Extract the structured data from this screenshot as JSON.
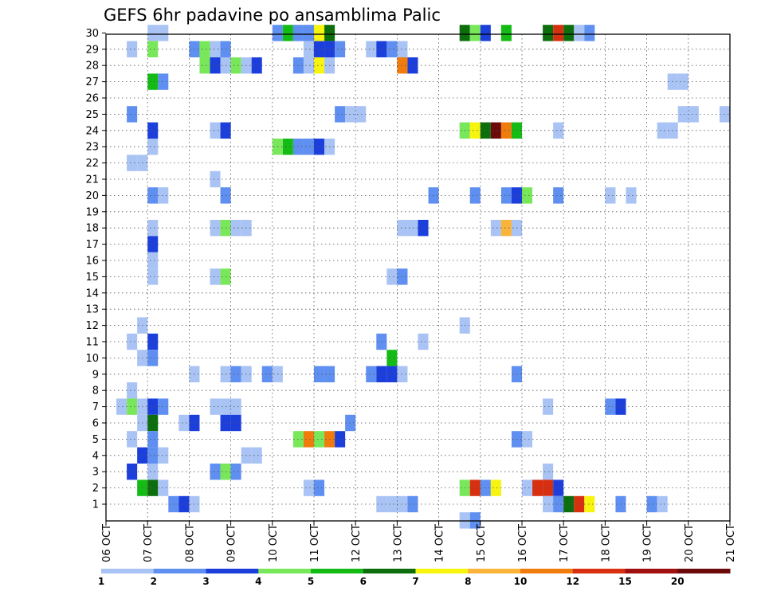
{
  "chart_data": {
    "type": "heatmap",
    "title": "GEFS 6hr padavine po ansamblima Palic",
    "xlabel": "",
    "ylabel": "",
    "x_tick_labels": [
      "06 OCT",
      "07 OCT",
      "08 OCT",
      "09 OCT",
      "10 OCT",
      "11 OCT",
      "12 OCT",
      "13 OCT",
      "14 OCT",
      "15 OCT",
      "16 OCT",
      "17 OCT",
      "18 OCT",
      "19 OCT",
      "20 OCT",
      "21 OCT"
    ],
    "y_tick_labels": [
      "1",
      "2",
      "3",
      "4",
      "5",
      "6",
      "7",
      "8",
      "9",
      "10",
      "11",
      "12",
      "13",
      "14",
      "15",
      "16",
      "17",
      "18",
      "19",
      "20",
      "21",
      "22",
      "23",
      "24",
      "25",
      "26",
      "27",
      "28",
      "29",
      "30"
    ],
    "xlim": [
      "06 OCT 00Z",
      "21 OCT 00Z"
    ],
    "ylim": [
      1,
      30
    ],
    "time_step_hours": 6,
    "grid": true,
    "legend": {
      "placement": "bottom",
      "levels": [
        1,
        2,
        3,
        4,
        5,
        6,
        7,
        8,
        10,
        12,
        15,
        20
      ],
      "level_labels": [
        "1",
        "2",
        "3",
        "4",
        "5",
        "6",
        "7",
        "8",
        "10",
        "12",
        "15",
        "20"
      ],
      "colors": [
        "#a9c3f5",
        "#5f8ff0",
        "#1c3fdc",
        "#78e85a",
        "#15bb15",
        "#0d6e0d",
        "#f7f410",
        "#fbb43a",
        "#f07c0e",
        "#d72f10",
        "#a01010",
        "#6c0a0a"
      ]
    },
    "cells": [
      {
        "member": 30,
        "time": "07 OCT 00Z",
        "cat": 0
      },
      {
        "member": 30,
        "time": "07 OCT 06Z",
        "cat": 0
      },
      {
        "member": 30,
        "time": "10 OCT 00Z",
        "cat": 1
      },
      {
        "member": 30,
        "time": "10 OCT 06Z",
        "cat": 4
      },
      {
        "member": 30,
        "time": "10 OCT 12Z",
        "cat": 1
      },
      {
        "member": 30,
        "time": "10 OCT 18Z",
        "cat": 1
      },
      {
        "member": 30,
        "time": "11 OCT 00Z",
        "cat": 6
      },
      {
        "member": 30,
        "time": "11 OCT 06Z",
        "cat": 5
      },
      {
        "member": 30,
        "time": "14 OCT 12Z",
        "cat": 5
      },
      {
        "member": 30,
        "time": "14 OCT 18Z",
        "cat": 3
      },
      {
        "member": 30,
        "time": "15 OCT 00Z",
        "cat": 2
      },
      {
        "member": 30,
        "time": "15 OCT 12Z",
        "cat": 4
      },
      {
        "member": 30,
        "time": "16 OCT 12Z",
        "cat": 5
      },
      {
        "member": 30,
        "time": "16 OCT 18Z",
        "cat": 9
      },
      {
        "member": 30,
        "time": "17 OCT 00Z",
        "cat": 5
      },
      {
        "member": 30,
        "time": "17 OCT 06Z",
        "cat": 0
      },
      {
        "member": 30,
        "time": "17 OCT 12Z",
        "cat": 1
      },
      {
        "member": 29,
        "time": "06 OCT 12Z",
        "cat": 0
      },
      {
        "member": 29,
        "time": "07 OCT 00Z",
        "cat": 3
      },
      {
        "member": 29,
        "time": "08 OCT 00Z",
        "cat": 1
      },
      {
        "member": 29,
        "time": "08 OCT 06Z",
        "cat": 3
      },
      {
        "member": 29,
        "time": "08 OCT 12Z",
        "cat": 0
      },
      {
        "member": 29,
        "time": "08 OCT 18Z",
        "cat": 1
      },
      {
        "member": 29,
        "time": "10 OCT 18Z",
        "cat": 0
      },
      {
        "member": 29,
        "time": "11 OCT 00Z",
        "cat": 2
      },
      {
        "member": 29,
        "time": "11 OCT 06Z",
        "cat": 2
      },
      {
        "member": 29,
        "time": "11 OCT 12Z",
        "cat": 1
      },
      {
        "member": 29,
        "time": "12 OCT 06Z",
        "cat": 0
      },
      {
        "member": 29,
        "time": "12 OCT 12Z",
        "cat": 2
      },
      {
        "member": 29,
        "time": "12 OCT 18Z",
        "cat": 1
      },
      {
        "member": 29,
        "time": "13 OCT 00Z",
        "cat": 0
      },
      {
        "member": 28,
        "time": "08 OCT 06Z",
        "cat": 3
      },
      {
        "member": 28,
        "time": "08 OCT 12Z",
        "cat": 2
      },
      {
        "member": 28,
        "time": "08 OCT 18Z",
        "cat": 0
      },
      {
        "member": 28,
        "time": "09 OCT 00Z",
        "cat": 3
      },
      {
        "member": 28,
        "time": "09 OCT 06Z",
        "cat": 0
      },
      {
        "member": 28,
        "time": "09 OCT 12Z",
        "cat": 2
      },
      {
        "member": 28,
        "time": "10 OCT 12Z",
        "cat": 1
      },
      {
        "member": 28,
        "time": "10 OCT 18Z",
        "cat": 0
      },
      {
        "member": 28,
        "time": "11 OCT 00Z",
        "cat": 6
      },
      {
        "member": 28,
        "time": "11 OCT 06Z",
        "cat": 0
      },
      {
        "member": 28,
        "time": "13 OCT 00Z",
        "cat": 8
      },
      {
        "member": 28,
        "time": "13 OCT 06Z",
        "cat": 2
      },
      {
        "member": 27,
        "time": "07 OCT 00Z",
        "cat": 4
      },
      {
        "member": 27,
        "time": "07 OCT 06Z",
        "cat": 1
      },
      {
        "member": 27,
        "time": "19 OCT 12Z",
        "cat": 0
      },
      {
        "member": 27,
        "time": "19 OCT 18Z",
        "cat": 0
      },
      {
        "member": 25,
        "time": "06 OCT 12Z",
        "cat": 1
      },
      {
        "member": 25,
        "time": "11 OCT 12Z",
        "cat": 1
      },
      {
        "member": 25,
        "time": "11 OCT 18Z",
        "cat": 0
      },
      {
        "member": 25,
        "time": "12 OCT 00Z",
        "cat": 0
      },
      {
        "member": 25,
        "time": "19 OCT 18Z",
        "cat": 0
      },
      {
        "member": 25,
        "time": "20 OCT 00Z",
        "cat": 0
      },
      {
        "member": 25,
        "time": "20 OCT 18Z",
        "cat": 0
      },
      {
        "member": 24,
        "time": "07 OCT 00Z",
        "cat": 2
      },
      {
        "member": 24,
        "time": "08 OCT 12Z",
        "cat": 0
      },
      {
        "member": 24,
        "time": "08 OCT 18Z",
        "cat": 2
      },
      {
        "member": 24,
        "time": "14 OCT 12Z",
        "cat": 3
      },
      {
        "member": 24,
        "time": "14 OCT 18Z",
        "cat": 6
      },
      {
        "member": 24,
        "time": "15 OCT 00Z",
        "cat": 5
      },
      {
        "member": 24,
        "time": "15 OCT 06Z",
        "cat": 11
      },
      {
        "member": 24,
        "time": "15 OCT 12Z",
        "cat": 8
      },
      {
        "member": 24,
        "time": "15 OCT 18Z",
        "cat": 4
      },
      {
        "member": 24,
        "time": "16 OCT 18Z",
        "cat": 0
      },
      {
        "member": 24,
        "time": "19 OCT 06Z",
        "cat": 0
      },
      {
        "member": 24,
        "time": "19 OCT 12Z",
        "cat": 0
      },
      {
        "member": 23,
        "time": "07 OCT 00Z",
        "cat": 0
      },
      {
        "member": 23,
        "time": "10 OCT 00Z",
        "cat": 3
      },
      {
        "member": 23,
        "time": "10 OCT 06Z",
        "cat": 4
      },
      {
        "member": 23,
        "time": "10 OCT 12Z",
        "cat": 1
      },
      {
        "member": 23,
        "time": "10 OCT 18Z",
        "cat": 1
      },
      {
        "member": 23,
        "time": "11 OCT 00Z",
        "cat": 2
      },
      {
        "member": 23,
        "time": "11 OCT 06Z",
        "cat": 0
      },
      {
        "member": 22,
        "time": "06 OCT 12Z",
        "cat": 0
      },
      {
        "member": 22,
        "time": "06 OCT 18Z",
        "cat": 0
      },
      {
        "member": 21,
        "time": "08 OCT 12Z",
        "cat": 0
      },
      {
        "member": 20,
        "time": "07 OCT 00Z",
        "cat": 1
      },
      {
        "member": 20,
        "time": "07 OCT 06Z",
        "cat": 0
      },
      {
        "member": 20,
        "time": "08 OCT 18Z",
        "cat": 1
      },
      {
        "member": 20,
        "time": "13 OCT 18Z",
        "cat": 1
      },
      {
        "member": 20,
        "time": "14 OCT 18Z",
        "cat": 1
      },
      {
        "member": 20,
        "time": "15 OCT 12Z",
        "cat": 1
      },
      {
        "member": 20,
        "time": "15 OCT 18Z",
        "cat": 2
      },
      {
        "member": 20,
        "time": "16 OCT 00Z",
        "cat": 3
      },
      {
        "member": 20,
        "time": "16 OCT 18Z",
        "cat": 1
      },
      {
        "member": 20,
        "time": "18 OCT 00Z",
        "cat": 0
      },
      {
        "member": 20,
        "time": "18 OCT 12Z",
        "cat": 0
      },
      {
        "member": 18,
        "time": "07 OCT 00Z",
        "cat": 0
      },
      {
        "member": 18,
        "time": "08 OCT 12Z",
        "cat": 0
      },
      {
        "member": 18,
        "time": "08 OCT 18Z",
        "cat": 3
      },
      {
        "member": 18,
        "time": "09 OCT 00Z",
        "cat": 0
      },
      {
        "member": 18,
        "time": "09 OCT 06Z",
        "cat": 0
      },
      {
        "member": 18,
        "time": "13 OCT 00Z",
        "cat": 0
      },
      {
        "member": 18,
        "time": "13 OCT 06Z",
        "cat": 0
      },
      {
        "member": 18,
        "time": "13 OCT 12Z",
        "cat": 2
      },
      {
        "member": 18,
        "time": "15 OCT 06Z",
        "cat": 0
      },
      {
        "member": 18,
        "time": "15 OCT 12Z",
        "cat": 7
      },
      {
        "member": 18,
        "time": "15 OCT 18Z",
        "cat": 0
      },
      {
        "member": 17,
        "time": "07 OCT 00Z",
        "cat": 2
      },
      {
        "member": 16,
        "time": "07 OCT 00Z",
        "cat": 0
      },
      {
        "member": 15,
        "time": "07 OCT 00Z",
        "cat": 0
      },
      {
        "member": 15,
        "time": "08 OCT 12Z",
        "cat": 0
      },
      {
        "member": 15,
        "time": "08 OCT 18Z",
        "cat": 3
      },
      {
        "member": 15,
        "time": "12 OCT 18Z",
        "cat": 0
      },
      {
        "member": 15,
        "time": "13 OCT 00Z",
        "cat": 1
      },
      {
        "member": 12,
        "time": "06 OCT 18Z",
        "cat": 0
      },
      {
        "member": 12,
        "time": "14 OCT 12Z",
        "cat": 0
      },
      {
        "member": 11,
        "time": "06 OCT 12Z",
        "cat": 0
      },
      {
        "member": 11,
        "time": "07 OCT 00Z",
        "cat": 2
      },
      {
        "member": 11,
        "time": "12 OCT 12Z",
        "cat": 1
      },
      {
        "member": 11,
        "time": "13 OCT 12Z",
        "cat": 0
      },
      {
        "member": 10,
        "time": "06 OCT 18Z",
        "cat": 0
      },
      {
        "member": 10,
        "time": "07 OCT 00Z",
        "cat": 1
      },
      {
        "member": 10,
        "time": "12 OCT 18Z",
        "cat": 4
      },
      {
        "member": 9,
        "time": "08 OCT 00Z",
        "cat": 0
      },
      {
        "member": 9,
        "time": "08 OCT 18Z",
        "cat": 0
      },
      {
        "member": 9,
        "time": "09 OCT 00Z",
        "cat": 1
      },
      {
        "member": 9,
        "time": "09 OCT 06Z",
        "cat": 0
      },
      {
        "member": 9,
        "time": "09 OCT 18Z",
        "cat": 1
      },
      {
        "member": 9,
        "time": "10 OCT 00Z",
        "cat": 0
      },
      {
        "member": 9,
        "time": "11 OCT 00Z",
        "cat": 1
      },
      {
        "member": 9,
        "time": "11 OCT 06Z",
        "cat": 1
      },
      {
        "member": 9,
        "time": "12 OCT 06Z",
        "cat": 1
      },
      {
        "member": 9,
        "time": "12 OCT 12Z",
        "cat": 2
      },
      {
        "member": 9,
        "time": "12 OCT 18Z",
        "cat": 2
      },
      {
        "member": 9,
        "time": "13 OCT 00Z",
        "cat": 0
      },
      {
        "member": 9,
        "time": "15 OCT 18Z",
        "cat": 1
      },
      {
        "member": 8,
        "time": "06 OCT 12Z",
        "cat": 0
      },
      {
        "member": 7,
        "time": "06 OCT 06Z",
        "cat": 0
      },
      {
        "member": 7,
        "time": "06 OCT 12Z",
        "cat": 3
      },
      {
        "member": 7,
        "time": "06 OCT 18Z",
        "cat": 0
      },
      {
        "member": 7,
        "time": "07 OCT 00Z",
        "cat": 2
      },
      {
        "member": 7,
        "time": "07 OCT 06Z",
        "cat": 1
      },
      {
        "member": 7,
        "time": "08 OCT 12Z",
        "cat": 0
      },
      {
        "member": 7,
        "time": "08 OCT 18Z",
        "cat": 0
      },
      {
        "member": 7,
        "time": "09 OCT 00Z",
        "cat": 0
      },
      {
        "member": 7,
        "time": "16 OCT 12Z",
        "cat": 0
      },
      {
        "member": 7,
        "time": "18 OCT 00Z",
        "cat": 1
      },
      {
        "member": 7,
        "time": "18 OCT 06Z",
        "cat": 2
      },
      {
        "member": 6,
        "time": "06 OCT 18Z",
        "cat": 0
      },
      {
        "member": 6,
        "time": "07 OCT 00Z",
        "cat": 5
      },
      {
        "member": 6,
        "time": "07 OCT 18Z",
        "cat": 0
      },
      {
        "member": 6,
        "time": "08 OCT 00Z",
        "cat": 2
      },
      {
        "member": 6,
        "time": "08 OCT 18Z",
        "cat": 2
      },
      {
        "member": 6,
        "time": "09 OCT 00Z",
        "cat": 2
      },
      {
        "member": 6,
        "time": "11 OCT 18Z",
        "cat": 1
      },
      {
        "member": 5,
        "time": "06 OCT 12Z",
        "cat": 0
      },
      {
        "member": 5,
        "time": "07 OCT 00Z",
        "cat": 1
      },
      {
        "member": 5,
        "time": "10 OCT 12Z",
        "cat": 3
      },
      {
        "member": 5,
        "time": "10 OCT 18Z",
        "cat": 8
      },
      {
        "member": 5,
        "time": "11 OCT 00Z",
        "cat": 3
      },
      {
        "member": 5,
        "time": "11 OCT 06Z",
        "cat": 8
      },
      {
        "member": 5,
        "time": "11 OCT 12Z",
        "cat": 2
      },
      {
        "member": 5,
        "time": "15 OCT 18Z",
        "cat": 1
      },
      {
        "member": 5,
        "time": "16 OCT 00Z",
        "cat": 0
      },
      {
        "member": 4,
        "time": "06 OCT 18Z",
        "cat": 2
      },
      {
        "member": 4,
        "time": "07 OCT 00Z",
        "cat": 1
      },
      {
        "member": 4,
        "time": "07 OCT 06Z",
        "cat": 0
      },
      {
        "member": 4,
        "time": "09 OCT 06Z",
        "cat": 0
      },
      {
        "member": 4,
        "time": "09 OCT 12Z",
        "cat": 0
      },
      {
        "member": 3,
        "time": "06 OCT 12Z",
        "cat": 2
      },
      {
        "member": 3,
        "time": "07 OCT 00Z",
        "cat": 0
      },
      {
        "member": 3,
        "time": "08 OCT 12Z",
        "cat": 1
      },
      {
        "member": 3,
        "time": "08 OCT 18Z",
        "cat": 3
      },
      {
        "member": 3,
        "time": "09 OCT 00Z",
        "cat": 1
      },
      {
        "member": 3,
        "time": "16 OCT 12Z",
        "cat": 0
      },
      {
        "member": 2,
        "time": "06 OCT 18Z",
        "cat": 4
      },
      {
        "member": 2,
        "time": "07 OCT 00Z",
        "cat": 5
      },
      {
        "member": 2,
        "time": "07 OCT 06Z",
        "cat": 0
      },
      {
        "member": 2,
        "time": "10 OCT 18Z",
        "cat": 0
      },
      {
        "member": 2,
        "time": "11 OCT 00Z",
        "cat": 1
      },
      {
        "member": 2,
        "time": "14 OCT 12Z",
        "cat": 3
      },
      {
        "member": 2,
        "time": "14 OCT 18Z",
        "cat": 9
      },
      {
        "member": 2,
        "time": "15 OCT 00Z",
        "cat": 1
      },
      {
        "member": 2,
        "time": "15 OCT 06Z",
        "cat": 6
      },
      {
        "member": 2,
        "time": "16 OCT 00Z",
        "cat": 0
      },
      {
        "member": 2,
        "time": "16 OCT 06Z",
        "cat": 9
      },
      {
        "member": 2,
        "time": "16 OCT 12Z",
        "cat": 9
      },
      {
        "member": 2,
        "time": "16 OCT 18Z",
        "cat": 2
      },
      {
        "member": 1,
        "time": "07 OCT 12Z",
        "cat": 1
      },
      {
        "member": 1,
        "time": "07 OCT 18Z",
        "cat": 2
      },
      {
        "member": 1,
        "time": "08 OCT 00Z",
        "cat": 0
      },
      {
        "member": 1,
        "time": "12 OCT 12Z",
        "cat": 0
      },
      {
        "member": 1,
        "time": "12 OCT 18Z",
        "cat": 0
      },
      {
        "member": 1,
        "time": "13 OCT 00Z",
        "cat": 0
      },
      {
        "member": 1,
        "time": "13 OCT 06Z",
        "cat": 1
      },
      {
        "member": 1,
        "time": "16 OCT 12Z",
        "cat": 0
      },
      {
        "member": 1,
        "time": "16 OCT 18Z",
        "cat": 1
      },
      {
        "member": 1,
        "time": "17 OCT 00Z",
        "cat": 5
      },
      {
        "member": 1,
        "time": "17 OCT 06Z",
        "cat": 9
      },
      {
        "member": 1,
        "time": "17 OCT 12Z",
        "cat": 6
      },
      {
        "member": 1,
        "time": "18 OCT 06Z",
        "cat": 1
      },
      {
        "member": 1,
        "time": "19 OCT 00Z",
        "cat": 1
      },
      {
        "member": 1,
        "time": "19 OCT 06Z",
        "cat": 0
      },
      {
        "member": 0,
        "time": "14 OCT 12Z",
        "cat": 0
      },
      {
        "member": 0,
        "time": "14 OCT 18Z",
        "cat": 1
      }
    ]
  }
}
